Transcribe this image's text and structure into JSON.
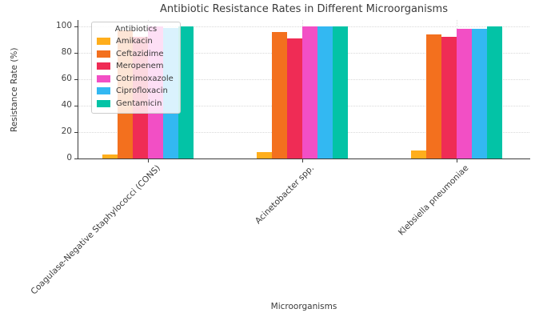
{
  "chart_data": {
    "type": "bar",
    "title": "Antibiotic Resistance Rates in Different Microorganisms",
    "xlabel": "Microorganisms",
    "ylabel": "Resistance Rate (%)",
    "legend_title": "Antibiotics",
    "legend_position": "upper left",
    "grid": true,
    "ylim": [
      0,
      105
    ],
    "yticks": [
      0,
      20,
      40,
      60,
      80,
      100
    ],
    "categories": [
      "Coagulase-Negative Staphylococci (CONS)",
      "Acinetobacter spp.",
      "Klebsiella pneumoniae"
    ],
    "series": [
      {
        "name": "Amikacin",
        "color": "#ffae1c",
        "values": [
          3,
          5,
          6
        ]
      },
      {
        "name": "Ceftazidime",
        "color": "#f3701e",
        "values": [
          97,
          96,
          94
        ]
      },
      {
        "name": "Meropenem",
        "color": "#ef2c55",
        "values": [
          92,
          91,
          92
        ]
      },
      {
        "name": "Cotrimoxazole",
        "color": "#f24fc5",
        "values": [
          100,
          100,
          98
        ]
      },
      {
        "name": "Ciprofloxacin",
        "color": "#33b8f2",
        "values": [
          99,
          100,
          98
        ]
      },
      {
        "name": "Gentamicin",
        "color": "#03c3a6",
        "values": [
          100,
          100,
          100
        ]
      }
    ]
  }
}
